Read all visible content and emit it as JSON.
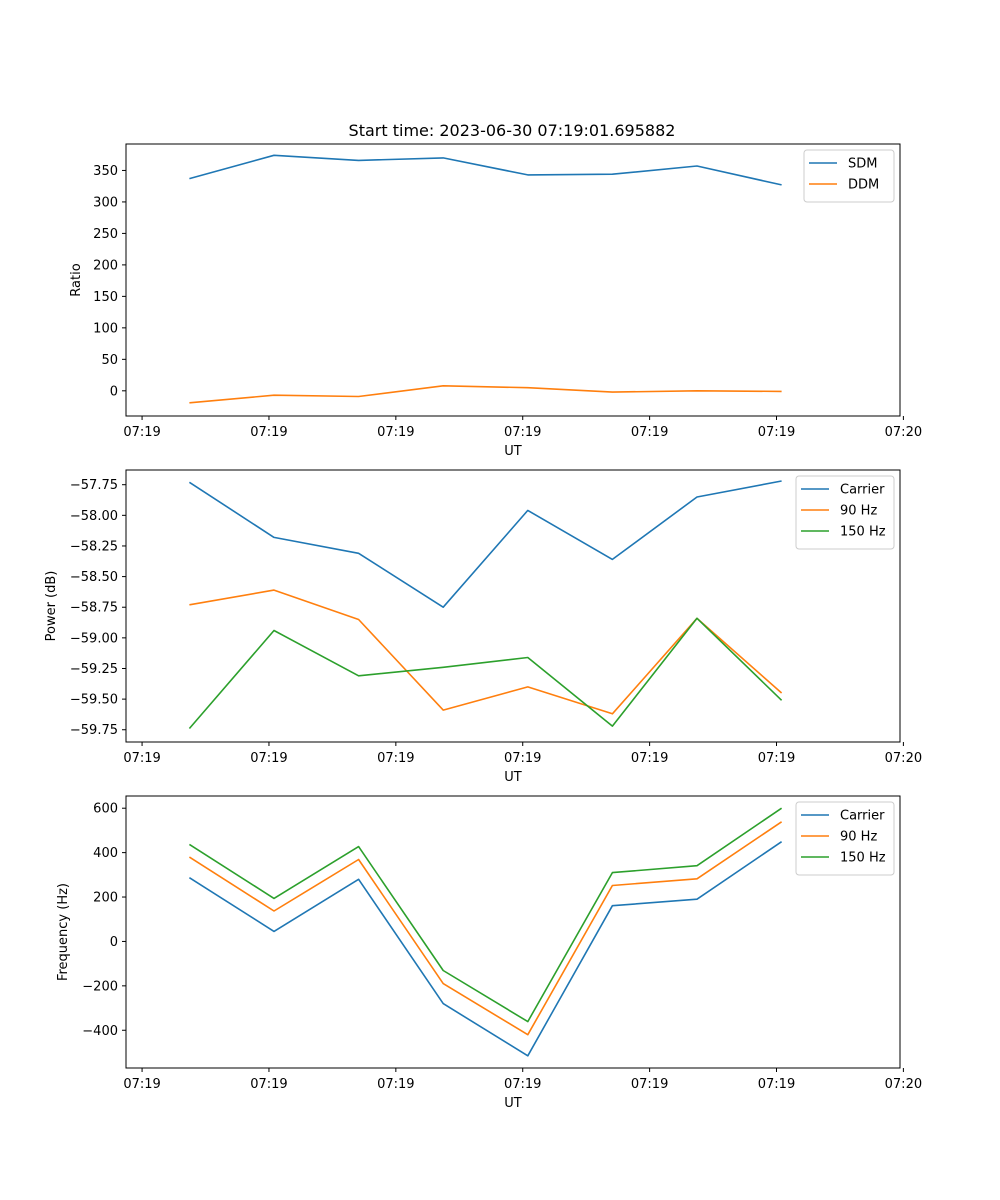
{
  "figure": {
    "title": "Start time: 2023-06-30 07:19:01.695882"
  },
  "colors": {
    "blue": "#1f77b4",
    "orange": "#ff7f0e",
    "green": "#2ca02c"
  },
  "chart_data": [
    {
      "type": "line",
      "title": "Start time: 2023-06-30 07:19:01.695882",
      "xlabel": "UT",
      "ylabel": "Ratio",
      "x_tick_labels": [
        "07:19",
        "07:19",
        "07:19",
        "07:19",
        "07:19",
        "07:19",
        "07:20"
      ],
      "x": [
        1,
        2,
        3,
        4,
        5,
        6,
        7,
        8
      ],
      "xlim": [
        0.25,
        9.4
      ],
      "xticks": [
        0.44,
        1.94,
        3.44,
        4.94,
        6.44,
        7.94,
        9.44
      ],
      "ylim": [
        -40,
        392
      ],
      "yticks": [
        0,
        50,
        100,
        150,
        200,
        250,
        300,
        350
      ],
      "legend": "top-right",
      "grid": false,
      "series": [
        {
          "name": "SDM",
          "color": "#1f77b4",
          "values": [
            337,
            374,
            366,
            370,
            343,
            344,
            357,
            327
          ]
        },
        {
          "name": "DDM",
          "color": "#ff7f0e",
          "values": [
            -19,
            -7,
            -9,
            8,
            5,
            -2,
            0,
            -1
          ]
        }
      ]
    },
    {
      "type": "line",
      "xlabel": "UT",
      "ylabel": "Power (dB)",
      "x_tick_labels": [
        "07:19",
        "07:19",
        "07:19",
        "07:19",
        "07:19",
        "07:19",
        "07:20"
      ],
      "x": [
        1,
        2,
        3,
        4,
        5,
        6,
        7,
        8
      ],
      "xlim": [
        0.25,
        9.4
      ],
      "xticks": [
        0.44,
        1.94,
        3.44,
        4.94,
        6.44,
        7.94,
        9.44
      ],
      "ylim": [
        -59.85,
        -57.63
      ],
      "yticks": [
        -59.75,
        -59.5,
        -59.25,
        -59.0,
        -58.75,
        -58.5,
        -58.25,
        -58.0,
        -57.75
      ],
      "ytick_labels": [
        "−59.75",
        "−59.50",
        "−59.25",
        "−59.00",
        "−58.75",
        "−58.50",
        "−58.25",
        "−58.00",
        "−57.75"
      ],
      "legend": "top-right",
      "grid": false,
      "series": [
        {
          "name": "Carrier",
          "color": "#1f77b4",
          "values": [
            -57.73,
            -58.18,
            -58.31,
            -58.75,
            -57.96,
            -58.36,
            -57.85,
            -57.72
          ]
        },
        {
          "name": "90 Hz",
          "color": "#ff7f0e",
          "values": [
            -58.73,
            -58.61,
            -58.85,
            -59.59,
            -59.4,
            -59.62,
            -58.84,
            -59.45
          ]
        },
        {
          "name": "150 Hz",
          "color": "#2ca02c",
          "values": [
            -59.74,
            -58.94,
            -59.31,
            -59.24,
            -59.16,
            -59.72,
            -58.84,
            -59.51
          ]
        }
      ]
    },
    {
      "type": "line",
      "xlabel": "UT",
      "ylabel": "Frequency (Hz)",
      "x_tick_labels": [
        "07:19",
        "07:19",
        "07:19",
        "07:19",
        "07:19",
        "07:19",
        "07:20"
      ],
      "x": [
        1,
        2,
        3,
        4,
        5,
        6,
        7,
        8
      ],
      "xlim": [
        0.25,
        9.4
      ],
      "xticks": [
        0.44,
        1.94,
        3.44,
        4.94,
        6.44,
        7.94,
        9.44
      ],
      "ylim": [
        -570,
        655
      ],
      "yticks": [
        -400,
        -200,
        0,
        200,
        400,
        600
      ],
      "ytick_labels": [
        "−400",
        "−200",
        "0",
        "200",
        "400",
        "600"
      ],
      "legend": "top-right",
      "grid": false,
      "series": [
        {
          "name": "Carrier",
          "color": "#1f77b4",
          "values": [
            287,
            45,
            280,
            -280,
            -515,
            161,
            190,
            449
          ]
        },
        {
          "name": "90 Hz",
          "color": "#ff7f0e",
          "values": [
            380,
            137,
            369,
            -190,
            -420,
            252,
            282,
            539
          ]
        },
        {
          "name": "150 Hz",
          "color": "#2ca02c",
          "values": [
            437,
            194,
            427,
            -131,
            -361,
            310,
            341,
            600
          ]
        }
      ]
    }
  ]
}
